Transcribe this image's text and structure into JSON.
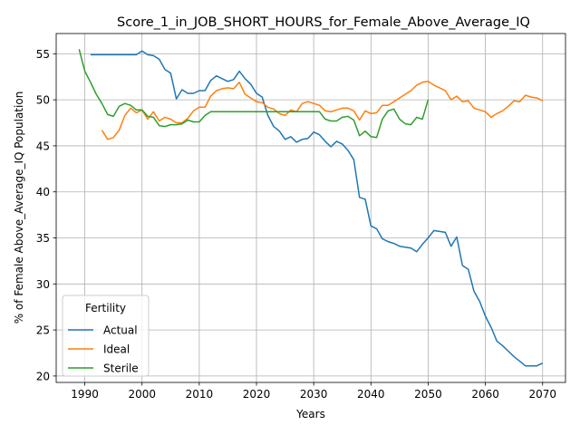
{
  "chart_data": {
    "type": "line",
    "title": "Score_1_in_JOB_SHORT_HOURS_for_Female_Above_Average_IQ",
    "xlabel": "Years",
    "ylabel": "% of Female Above_Average_IQ Population",
    "xlim": [
      1985,
      2074
    ],
    "ylim": [
      19.3,
      57.2
    ],
    "xticks": [
      1990,
      2000,
      2010,
      2020,
      2030,
      2040,
      2050,
      2060,
      2070
    ],
    "yticks": [
      20,
      25,
      30,
      35,
      40,
      45,
      50,
      55
    ],
    "grid": true,
    "legend": {
      "title": "Fertility",
      "placement": "lower-left"
    },
    "series": [
      {
        "name": "Actual",
        "color": "#1f77b4",
        "x": [
          1991,
          1992,
          1993,
          1994,
          1995,
          1996,
          1997,
          1998,
          1999,
          2000,
          2001,
          2002,
          2003,
          2004,
          2005,
          2006,
          2007,
          2008,
          2009,
          2010,
          2011,
          2012,
          2013,
          2014,
          2015,
          2016,
          2017,
          2018,
          2019,
          2020,
          2021,
          2022,
          2023,
          2024,
          2025,
          2026,
          2027,
          2028,
          2029,
          2030,
          2031,
          2032,
          2033,
          2034,
          2035,
          2036,
          2037,
          2038,
          2039,
          2040,
          2041,
          2042,
          2043,
          2044,
          2045,
          2046,
          2047,
          2048,
          2049,
          2050,
          2051,
          2052,
          2053,
          2054,
          2055,
          2056,
          2057,
          2058,
          2059,
          2060,
          2061,
          2062,
          2063,
          2064,
          2065,
          2066,
          2067,
          2068,
          2069,
          2070
        ],
        "values": [
          54.9,
          54.9,
          54.9,
          54.9,
          54.9,
          54.9,
          54.9,
          54.9,
          54.9,
          55.3,
          54.9,
          54.8,
          54.4,
          53.3,
          52.9,
          50.1,
          51.1,
          50.7,
          50.7,
          51.0,
          51.0,
          52.1,
          52.6,
          52.3,
          52.0,
          52.2,
          53.1,
          52.3,
          51.7,
          50.7,
          50.3,
          48.3,
          47.1,
          46.6,
          45.7,
          46.0,
          45.4,
          45.7,
          45.8,
          46.5,
          46.2,
          45.5,
          44.9,
          45.5,
          45.2,
          44.5,
          43.5,
          39.4,
          39.2,
          36.3,
          36.0,
          34.9,
          34.6,
          34.4,
          34.1,
          34.0,
          33.9,
          33.5,
          34.3,
          35.0,
          35.8,
          35.7,
          35.6,
          34.1,
          35.1,
          32.0,
          31.6,
          29.2,
          28.1,
          26.5,
          25.3,
          23.8,
          23.3,
          22.7,
          22.1,
          21.6,
          21.1,
          21.1,
          21.1,
          21.4
        ]
      },
      {
        "name": "Ideal",
        "color": "#ff7f0e",
        "x": [
          1993,
          1994,
          1995,
          1996,
          1997,
          1998,
          1999,
          2000,
          2001,
          2002,
          2003,
          2004,
          2005,
          2006,
          2007,
          2008,
          2009,
          2010,
          2011,
          2012,
          2013,
          2014,
          2015,
          2016,
          2017,
          2018,
          2019,
          2020,
          2021,
          2022,
          2023,
          2024,
          2025,
          2026,
          2027,
          2028,
          2029,
          2030,
          2031,
          2032,
          2033,
          2034,
          2035,
          2036,
          2037,
          2038,
          2039,
          2040,
          2041,
          2042,
          2043,
          2044,
          2045,
          2046,
          2047,
          2048,
          2049,
          2050,
          2051,
          2052,
          2053,
          2054,
          2055,
          2056,
          2057,
          2058,
          2059,
          2060,
          2061,
          2062,
          2063,
          2064,
          2065,
          2066,
          2067,
          2068,
          2069,
          2070
        ],
        "values": [
          46.7,
          45.7,
          45.9,
          46.7,
          48.3,
          49.1,
          48.6,
          48.9,
          47.9,
          48.7,
          47.7,
          48.1,
          47.9,
          47.5,
          47.5,
          48.0,
          48.8,
          49.2,
          49.2,
          50.4,
          51.0,
          51.2,
          51.3,
          51.2,
          51.9,
          50.6,
          50.2,
          49.8,
          49.7,
          49.2,
          49.0,
          48.5,
          48.3,
          48.9,
          48.7,
          49.6,
          49.8,
          49.6,
          49.4,
          48.8,
          48.7,
          48.9,
          49.1,
          49.1,
          48.8,
          47.8,
          48.8,
          48.5,
          48.6,
          49.4,
          49.4,
          49.8,
          50.2,
          50.6,
          51.0,
          51.6,
          51.9,
          52.0,
          51.6,
          51.3,
          51.0,
          50.0,
          50.4,
          49.8,
          49.9,
          49.1,
          48.9,
          48.7,
          48.1,
          48.5,
          48.8,
          49.3,
          49.9,
          49.8,
          50.5,
          50.3,
          50.2,
          49.9
        ]
      },
      {
        "name": "Sterile",
        "color": "#2ca02c",
        "x": [
          1989,
          1990,
          1991,
          1992,
          1993,
          1994,
          1995,
          1996,
          1997,
          1998,
          1999,
          2000,
          2001,
          2002,
          2003,
          2004,
          2005,
          2006,
          2007,
          2008,
          2009,
          2010,
          2011,
          2012,
          2013,
          2014,
          2015,
          2016,
          2017,
          2018,
          2019,
          2020,
          2021,
          2022,
          2023,
          2024,
          2025,
          2026,
          2027,
          2028,
          2029,
          2030,
          2031,
          2032,
          2033,
          2034,
          2035,
          2036,
          2037,
          2038,
          2039,
          2040,
          2041,
          2042,
          2043,
          2044,
          2045,
          2046,
          2047,
          2048,
          2049,
          2050
        ],
        "values": [
          55.5,
          53.1,
          51.9,
          50.6,
          49.6,
          48.4,
          48.2,
          49.3,
          49.6,
          49.4,
          48.9,
          48.9,
          48.2,
          48.1,
          47.2,
          47.1,
          47.3,
          47.3,
          47.4,
          47.8,
          47.6,
          47.6,
          48.3,
          48.7,
          48.7,
          48.7,
          48.7,
          48.7,
          48.7,
          48.7,
          48.7,
          48.7,
          48.7,
          48.7,
          48.7,
          48.7,
          48.7,
          48.7,
          48.7,
          48.7,
          48.7,
          48.7,
          48.7,
          47.9,
          47.7,
          47.7,
          48.1,
          48.2,
          47.8,
          46.1,
          46.6,
          46.0,
          45.9,
          47.9,
          48.8,
          49.0,
          47.9,
          47.4,
          47.3,
          48.1,
          47.9,
          50.0
        ]
      }
    ]
  }
}
